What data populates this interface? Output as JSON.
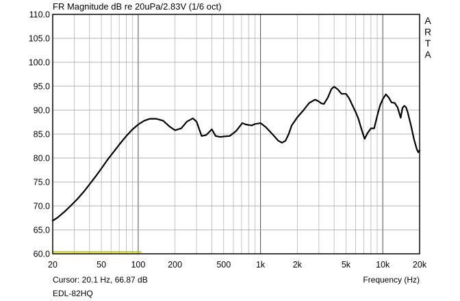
{
  "chart_data": {
    "type": "line",
    "title": "FR Magnitude dB re 20uPa/2.83V (1/6 oct)",
    "xlabel": "Frequency (Hz)",
    "ylabel": "",
    "x_scale": "log",
    "xlim": [
      20,
      20000
    ],
    "ylim": [
      60,
      110
    ],
    "grid": true,
    "x_tick_labels": [
      {
        "value": 20,
        "label": "20"
      },
      {
        "value": 50,
        "label": "50"
      },
      {
        "value": 100,
        "label": "100"
      },
      {
        "value": 200,
        "label": "200"
      },
      {
        "value": 500,
        "label": "500"
      },
      {
        "value": 1000,
        "label": "1k"
      },
      {
        "value": 2000,
        "label": "2k"
      },
      {
        "value": 5000,
        "label": "5k"
      },
      {
        "value": 10000,
        "label": "10k"
      },
      {
        "value": 20000,
        "label": "20k"
      }
    ],
    "y_tick_labels": [
      {
        "value": 60,
        "label": "60.0"
      },
      {
        "value": 65,
        "label": "65.0"
      },
      {
        "value": 70,
        "label": "70.0"
      },
      {
        "value": 75,
        "label": "75.0"
      },
      {
        "value": 80,
        "label": "80.0"
      },
      {
        "value": 85,
        "label": "85.0"
      },
      {
        "value": 90,
        "label": "90.0"
      },
      {
        "value": 95,
        "label": "95.0"
      },
      {
        "value": 100,
        "label": "100.0"
      },
      {
        "value": 105,
        "label": "105.0"
      },
      {
        "value": 110,
        "label": "110.0"
      }
    ],
    "series": [
      {
        "color": "#000000",
        "x": [
          20,
          22,
          25,
          28,
          32,
          36,
          40,
          45,
          50,
          56,
          63,
          71,
          80,
          90,
          100,
          112,
          125,
          140,
          160,
          180,
          200,
          225,
          250,
          280,
          300,
          330,
          360,
          400,
          430,
          470,
          500,
          560,
          630,
          710,
          760,
          850,
          900,
          1000,
          1100,
          1250,
          1400,
          1500,
          1600,
          1700,
          1800,
          2000,
          2250,
          2500,
          2800,
          3000,
          3150,
          3300,
          3550,
          3800,
          4000,
          4300,
          4600,
          5000,
          5300,
          5600,
          6000,
          6300,
          6700,
          7100,
          7500,
          8000,
          8500,
          9000,
          9500,
          10000,
          10600,
          11200,
          11800,
          12500,
          13200,
          14000,
          14500,
          15000,
          15500,
          16000,
          17000,
          18000,
          19000,
          19500,
          20000
        ],
        "y": [
          66.9,
          67.6,
          68.8,
          70.0,
          71.5,
          73.0,
          74.5,
          76.2,
          77.8,
          79.6,
          81.3,
          83.0,
          84.6,
          86.0,
          87.0,
          87.8,
          88.2,
          88.2,
          87.8,
          86.6,
          85.8,
          86.2,
          87.6,
          88.3,
          87.6,
          84.6,
          84.8,
          86.0,
          84.6,
          84.4,
          84.5,
          84.6,
          85.6,
          87.3,
          87.0,
          86.8,
          87.1,
          87.3,
          86.5,
          85.0,
          83.6,
          83.2,
          83.6,
          85.0,
          86.8,
          88.5,
          90.0,
          91.5,
          92.2,
          91.8,
          91.4,
          91.3,
          92.6,
          94.4,
          94.9,
          94.3,
          93.4,
          93.4,
          92.5,
          91.2,
          89.6,
          88.3,
          86.0,
          84.0,
          85.2,
          86.2,
          86.2,
          88.8,
          91.0,
          92.3,
          93.3,
          92.6,
          91.6,
          91.5,
          90.6,
          88.4,
          90.5,
          90.9,
          90.6,
          89.5,
          86.8,
          83.9,
          81.8,
          81.2,
          81.6
        ]
      },
      {
        "color": "#c8c800",
        "x": [
          20,
          105
        ],
        "y": [
          60.4,
          60.4
        ]
      }
    ]
  },
  "cursor_readout": "Cursor: 20.1 Hz, 66.87 dB",
  "device_label": "EDL-82HQ",
  "brand_letters": [
    "A",
    "R",
    "T",
    "A"
  ]
}
